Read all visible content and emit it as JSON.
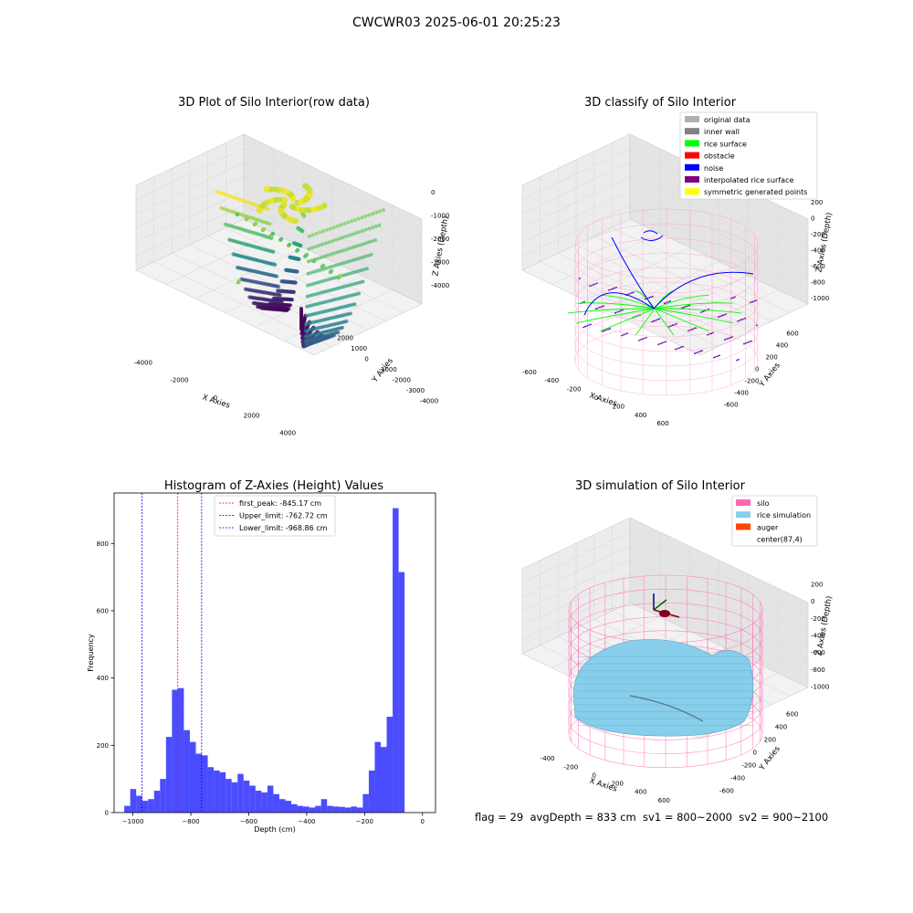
{
  "suptitle": "CWCWR03 2025-06-01 20:25:23",
  "status_text": "flag = 29  avgDepth = 833 cm  sv1 = 800~2000  sv2 = 900~2100",
  "chart_data": [
    {
      "type": "scatter",
      "title": "3D Plot of Silo Interior(row data)",
      "xlabel": "X Axies",
      "ylabel": "Y Axies",
      "zlabel": "Z Axies (Depth)",
      "x_ticks": [
        "-4000",
        "-2000",
        "0",
        "2000",
        "4000"
      ],
      "y_ticks": [
        "-4000",
        "-3000",
        "-2000",
        "-1000",
        "0",
        "1000",
        "2000"
      ],
      "z_ticks": [
        "0",
        "-1000",
        "-2000",
        "-3000",
        "-4000"
      ],
      "colormap": "viridis"
    },
    {
      "type": "scatter",
      "title": "3D classify of Silo Interior",
      "xlabel": "X Axies",
      "ylabel": "Y Axies",
      "zlabel": "Z Axies (Depth)",
      "x_ticks": [
        "-600",
        "-400",
        "-200",
        "0",
        "200",
        "400",
        "600"
      ],
      "y_ticks": [
        "-600",
        "-400",
        "-200",
        "0",
        "200",
        "400",
        "600"
      ],
      "z_ticks": [
        "200",
        "0",
        "-200",
        "-400",
        "-600",
        "-800",
        "-1000"
      ],
      "legend": [
        {
          "label": "original data",
          "color": "#b0b0b0"
        },
        {
          "label": "inner wall",
          "color": "#808080"
        },
        {
          "label": "rice surface",
          "color": "#00ff00"
        },
        {
          "label": "obstacle",
          "color": "#ff0000"
        },
        {
          "label": "noise",
          "color": "#0000ff"
        },
        {
          "label": "interpolated rice surface",
          "color": "#800080"
        },
        {
          "label": "symmetric generated points",
          "color": "#ffff00"
        }
      ]
    },
    {
      "type": "bar",
      "title": "Histogram of Z-Axies (Height) Values",
      "xlabel": "Depth (cm)",
      "ylabel": "Frequency",
      "xlim": [
        -1065,
        45
      ],
      "ylim": [
        0,
        950
      ],
      "x_ticks": [
        -1000,
        -800,
        -600,
        -400,
        -200,
        0
      ],
      "y_ticks": [
        0,
        200,
        400,
        600,
        800
      ],
      "bar_color": "#0000ff",
      "bin_start": -1030,
      "bin_width": 20.6,
      "values": [
        20,
        70,
        50,
        35,
        40,
        65,
        100,
        225,
        365,
        370,
        245,
        210,
        175,
        170,
        135,
        125,
        120,
        100,
        90,
        115,
        95,
        80,
        65,
        60,
        80,
        55,
        40,
        35,
        25,
        20,
        18,
        15,
        20,
        40,
        20,
        18,
        17,
        15,
        18,
        15,
        55,
        125,
        210,
        195,
        285,
        905,
        715
      ],
      "vlines": [
        {
          "label": "first_peak: -845.17 cm",
          "x": -845.17,
          "color": "#ff0000"
        },
        {
          "label": "Upper_limit: -762.72 cm",
          "x": -762.72,
          "color": "#0000ff"
        },
        {
          "label": "Lower_limit: -968.86 cm",
          "x": -968.86,
          "color": "#0000ff"
        }
      ]
    },
    {
      "type": "surface",
      "title": "3D simulation of Silo Interior",
      "xlabel": "X Axies",
      "ylabel": "Y Axies",
      "zlabel": "Z Axies (Depth)",
      "x_ticks": [
        "-400",
        "-200",
        "0",
        "200",
        "400",
        "600"
      ],
      "y_ticks": [
        "-600",
        "-400",
        "-200",
        "0",
        "200",
        "400",
        "600"
      ],
      "z_ticks": [
        "200",
        "0",
        "-200",
        "-400",
        "-600",
        "-800",
        "-1000"
      ],
      "legend": [
        {
          "label": "silo",
          "color": "#ff69b4"
        },
        {
          "label": "rice simulation",
          "color": "#87ceeb"
        },
        {
          "label": "auger",
          "color": "#ff4500"
        },
        {
          "label": "center(87,4)",
          "color": ""
        }
      ]
    }
  ]
}
